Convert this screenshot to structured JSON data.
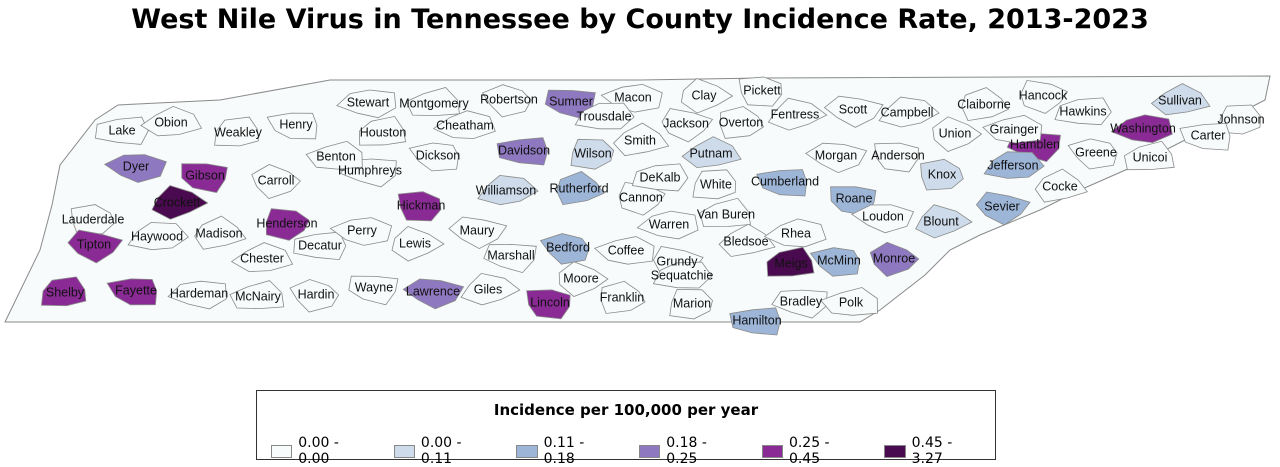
{
  "title": "West Nile Virus in Tennessee by County Incidence Rate, 2013-2023",
  "legend": {
    "title": "Incidence per 100,000 per year",
    "classes": [
      {
        "label": "0.00 - 0.00",
        "color": "#f7fbfb"
      },
      {
        "label": "0.00 - 0.11",
        "color": "#cddbea"
      },
      {
        "label": "0.11 - 0.18",
        "color": "#9db6d8"
      },
      {
        "label": "0.18 - 0.25",
        "color": "#8e78c0"
      },
      {
        "label": "0.25 - 0.45",
        "color": "#8a2a95"
      },
      {
        "label": "0.45 - 3.27",
        "color": "#4a0a4f"
      }
    ]
  },
  "counties": [
    {
      "name": "Lake",
      "class": 0
    },
    {
      "name": "Obion",
      "class": 0
    },
    {
      "name": "Weakley",
      "class": 0
    },
    {
      "name": "Henry",
      "class": 0
    },
    {
      "name": "Stewart",
      "class": 0
    },
    {
      "name": "Montgomery",
      "class": 0
    },
    {
      "name": "Robertson",
      "class": 0
    },
    {
      "name": "Sumner",
      "class": 3
    },
    {
      "name": "Macon",
      "class": 0
    },
    {
      "name": "Clay",
      "class": 0
    },
    {
      "name": "Pickett",
      "class": 0
    },
    {
      "name": "Scott",
      "class": 0
    },
    {
      "name": "Campbell",
      "class": 0
    },
    {
      "name": "Claiborne",
      "class": 0
    },
    {
      "name": "Hancock",
      "class": 0
    },
    {
      "name": "Hawkins",
      "class": 0
    },
    {
      "name": "Sullivan",
      "class": 1
    },
    {
      "name": "Johnson",
      "class": 0
    },
    {
      "name": "Carter",
      "class": 0
    },
    {
      "name": "Washington",
      "class": 4
    },
    {
      "name": "Unicoi",
      "class": 0
    },
    {
      "name": "Greene",
      "class": 0
    },
    {
      "name": "Hamblen",
      "class": 4
    },
    {
      "name": "Grainger",
      "class": 0
    },
    {
      "name": "Union",
      "class": 0
    },
    {
      "name": "Anderson",
      "class": 0
    },
    {
      "name": "Morgan",
      "class": 0
    },
    {
      "name": "Fentress",
      "class": 0
    },
    {
      "name": "Overton",
      "class": 0
    },
    {
      "name": "Jackson",
      "class": 0
    },
    {
      "name": "Trousdale",
      "class": 0
    },
    {
      "name": "Smith",
      "class": 0
    },
    {
      "name": "Wilson",
      "class": 1
    },
    {
      "name": "Davidson",
      "class": 3
    },
    {
      "name": "Cheatham",
      "class": 0
    },
    {
      "name": "Houston",
      "class": 0
    },
    {
      "name": "Dickson",
      "class": 0
    },
    {
      "name": "Humphreys",
      "class": 0
    },
    {
      "name": "Benton",
      "class": 0
    },
    {
      "name": "Carroll",
      "class": 0
    },
    {
      "name": "Gibson",
      "class": 4
    },
    {
      "name": "Dyer",
      "class": 3
    },
    {
      "name": "Crockett",
      "class": 5
    },
    {
      "name": "Lauderdale",
      "class": 0
    },
    {
      "name": "Tipton",
      "class": 4
    },
    {
      "name": "Haywood",
      "class": 0
    },
    {
      "name": "Madison",
      "class": 0
    },
    {
      "name": "Henderson",
      "class": 4
    },
    {
      "name": "Decatur",
      "class": 0
    },
    {
      "name": "Chester",
      "class": 0
    },
    {
      "name": "Shelby",
      "class": 4
    },
    {
      "name": "Fayette",
      "class": 4
    },
    {
      "name": "Hardeman",
      "class": 0
    },
    {
      "name": "McNairy",
      "class": 0
    },
    {
      "name": "Hardin",
      "class": 0
    },
    {
      "name": "Wayne",
      "class": 0
    },
    {
      "name": "Perry",
      "class": 0
    },
    {
      "name": "Lewis",
      "class": 0
    },
    {
      "name": "Hickman",
      "class": 4
    },
    {
      "name": "Maury",
      "class": 0
    },
    {
      "name": "Williamson",
      "class": 1
    },
    {
      "name": "Rutherford",
      "class": 2
    },
    {
      "name": "Cannon",
      "class": 0
    },
    {
      "name": "DeKalb",
      "class": 0
    },
    {
      "name": "Putnam",
      "class": 1
    },
    {
      "name": "White",
      "class": 0
    },
    {
      "name": "Cumberland",
      "class": 2
    },
    {
      "name": "Warren",
      "class": 0
    },
    {
      "name": "Van Buren",
      "class": 0
    },
    {
      "name": "Bedford",
      "class": 2
    },
    {
      "name": "Marshall",
      "class": 0
    },
    {
      "name": "Coffee",
      "class": 0
    },
    {
      "name": "Moore",
      "class": 0
    },
    {
      "name": "Lincoln",
      "class": 4
    },
    {
      "name": "Lawrence",
      "class": 3
    },
    {
      "name": "Giles",
      "class": 0
    },
    {
      "name": "Franklin",
      "class": 0
    },
    {
      "name": "Grundy",
      "class": 0
    },
    {
      "name": "Sequatchie",
      "class": 0
    },
    {
      "name": "Bledsoe",
      "class": 0
    },
    {
      "name": "Marion",
      "class": 0
    },
    {
      "name": "Hamilton",
      "class": 2
    },
    {
      "name": "Rhea",
      "class": 0
    },
    {
      "name": "Meigs",
      "class": 5
    },
    {
      "name": "McMinn",
      "class": 2
    },
    {
      "name": "Bradley",
      "class": 0
    },
    {
      "name": "Polk",
      "class": 0
    },
    {
      "name": "Monroe",
      "class": 3
    },
    {
      "name": "Roane",
      "class": 2
    },
    {
      "name": "Loudon",
      "class": 0
    },
    {
      "name": "Blount",
      "class": 1
    },
    {
      "name": "Knox",
      "class": 1
    },
    {
      "name": "Sevier",
      "class": 2
    },
    {
      "name": "Jefferson",
      "class": 2
    },
    {
      "name": "Cocke",
      "class": 0
    }
  ]
}
